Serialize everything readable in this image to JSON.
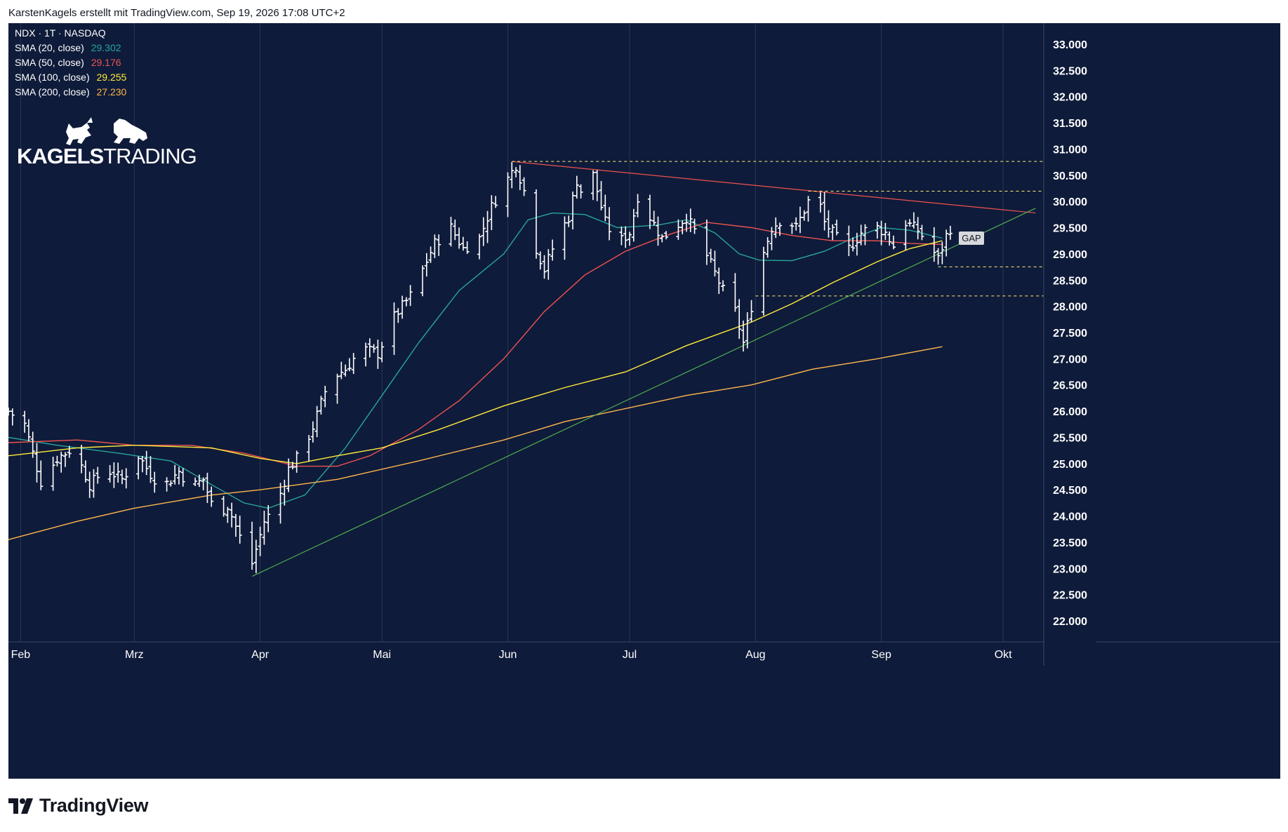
{
  "header": {
    "caption": "KarstenKagels erstellt mit TradingView.com, Sep 19, 2026 17:08 UTC+2"
  },
  "legend": {
    "symbol": "NDX · 1T · NASDAQ",
    "items": [
      {
        "label": "SMA (20, close)",
        "value": "29.302",
        "color": "#26a69a"
      },
      {
        "label": "SMA (50, close)",
        "value": "29.176",
        "color": "#ef5350"
      },
      {
        "label": "SMA (100, close)",
        "value": "29.255",
        "color": "#ffeb3b"
      },
      {
        "label": "SMA (200, close)",
        "value": "27.230",
        "color": "#ffb74d"
      }
    ]
  },
  "brand": {
    "name": "KAGELSTRADING",
    "name_bold": "KAGELS",
    "name_light": "TRADING"
  },
  "annotation": {
    "gap_label": "GAP"
  },
  "footer": {
    "logo_text": "TradingView"
  },
  "colors": {
    "background": "#0f1b3a",
    "grid": "#2a3656",
    "price_bars": "#ffffff",
    "level_line": "#fff176",
    "level_label_bg": "#fff176",
    "current_price_bg": "#ffffff",
    "downtrend_line": "#ef5350",
    "uptrend_line": "#4caf50"
  },
  "chart_data": {
    "type": "ohlc",
    "symbol": "NDX",
    "interval": "1T",
    "exchange": "NASDAQ",
    "x_axis": {
      "type": "date",
      "range": [
        "2026-01-29",
        "2026-10-11"
      ],
      "ticks": [
        {
          "date": "2026-02-01",
          "label": "Feb"
        },
        {
          "date": "2026-03-01",
          "label": "Mrz"
        },
        {
          "date": "2026-04-01",
          "label": "Apr"
        },
        {
          "date": "2026-05-01",
          "label": "Mai"
        },
        {
          "date": "2026-06-01",
          "label": "Jun"
        },
        {
          "date": "2026-07-01",
          "label": "Jul"
        },
        {
          "date": "2026-08-01",
          "label": "Aug"
        },
        {
          "date": "2026-09-01",
          "label": "Sep"
        },
        {
          "date": "2026-10-01",
          "label": "Okt"
        }
      ]
    },
    "y_axis": {
      "range": [
        21600,
        33400
      ],
      "ticks": [
        {
          "value": 22000,
          "label": "22.000"
        },
        {
          "value": 22500,
          "label": "22.500"
        },
        {
          "value": 23000,
          "label": "23.000"
        },
        {
          "value": 23500,
          "label": "23.500"
        },
        {
          "value": 24000,
          "label": "24.000"
        },
        {
          "value": 24500,
          "label": "24.500"
        },
        {
          "value": 25000,
          "label": "25.000"
        },
        {
          "value": 25500,
          "label": "25.500"
        },
        {
          "value": 26000,
          "label": "26.000"
        },
        {
          "value": 26500,
          "label": "26.500"
        },
        {
          "value": 27000,
          "label": "27.000"
        },
        {
          "value": 27500,
          "label": "27.500"
        },
        {
          "value": 28000,
          "label": "28.000"
        },
        {
          "value": 28500,
          "label": "28.500"
        },
        {
          "value": 29000,
          "label": "29.000"
        },
        {
          "value": 29500,
          "label": "29.500"
        },
        {
          "value": 30000,
          "label": "30.000"
        },
        {
          "value": 30500,
          "label": "30.500"
        },
        {
          "value": 31000,
          "label": "31.000"
        },
        {
          "value": 31500,
          "label": "31.500"
        },
        {
          "value": 32000,
          "label": "32.000"
        },
        {
          "value": 32500,
          "label": "32.500"
        },
        {
          "value": 33000,
          "label": "33.000"
        }
      ]
    },
    "current_price": {
      "value": 29644,
      "label": "29.644"
    },
    "horizontal_levels": [
      {
        "value": 30762,
        "label": "30.762",
        "from": "2026-06-02"
      },
      {
        "value": 30196,
        "label": "30.196",
        "from": "2026-08-14"
      },
      {
        "value": 28753,
        "label": "28.753",
        "from": "2026-09-15"
      },
      {
        "value": 28197,
        "label": "28.197",
        "from": "2026-08-01"
      }
    ],
    "trendlines": [
      {
        "name": "downtrend",
        "color": "#ef5350",
        "points": [
          [
            "2026-06-02",
            30762
          ],
          [
            "2026-10-09",
            29780
          ]
        ]
      },
      {
        "name": "uptrend",
        "color": "#4caf50",
        "points": [
          [
            "2026-03-30",
            22850
          ],
          [
            "2026-10-09",
            29870
          ]
        ]
      }
    ],
    "sma": [
      {
        "name": "SMA 20",
        "color": "#26a69a",
        "points": [
          [
            "2026-01-29",
            25500
          ],
          [
            "2026-02-10",
            25350
          ],
          [
            "2026-02-25",
            25200
          ],
          [
            "2026-03-10",
            25050
          ],
          [
            "2026-03-20",
            24600
          ],
          [
            "2026-03-28",
            24250
          ],
          [
            "2026-04-03",
            24150
          ],
          [
            "2026-04-12",
            24400
          ],
          [
            "2026-04-22",
            25300
          ],
          [
            "2026-05-01",
            26300
          ],
          [
            "2026-05-10",
            27300
          ],
          [
            "2026-05-20",
            28300
          ],
          [
            "2026-05-31",
            29000
          ],
          [
            "2026-06-06",
            29650
          ],
          [
            "2026-06-12",
            29780
          ],
          [
            "2026-06-20",
            29750
          ],
          [
            "2026-06-28",
            29500
          ],
          [
            "2026-07-08",
            29550
          ],
          [
            "2026-07-15",
            29650
          ],
          [
            "2026-07-22",
            29400
          ],
          [
            "2026-07-28",
            29000
          ],
          [
            "2026-08-02",
            28880
          ],
          [
            "2026-08-10",
            28870
          ],
          [
            "2026-08-18",
            29050
          ],
          [
            "2026-08-25",
            29300
          ],
          [
            "2026-09-01",
            29500
          ],
          [
            "2026-09-08",
            29450
          ],
          [
            "2026-09-16",
            29300
          ]
        ]
      },
      {
        "name": "SMA 50",
        "color": "#ef5350",
        "points": [
          [
            "2026-01-29",
            25400
          ],
          [
            "2026-02-15",
            25450
          ],
          [
            "2026-03-01",
            25350
          ],
          [
            "2026-03-15",
            25350
          ],
          [
            "2026-03-28",
            25200
          ],
          [
            "2026-04-10",
            24950
          ],
          [
            "2026-04-20",
            24950
          ],
          [
            "2026-04-28",
            25150
          ],
          [
            "2026-05-10",
            25650
          ],
          [
            "2026-05-20",
            26200
          ],
          [
            "2026-05-31",
            27000
          ],
          [
            "2026-06-10",
            27900
          ],
          [
            "2026-06-20",
            28600
          ],
          [
            "2026-06-30",
            29050
          ],
          [
            "2026-07-10",
            29350
          ],
          [
            "2026-07-20",
            29600
          ],
          [
            "2026-07-31",
            29500
          ],
          [
            "2026-08-10",
            29350
          ],
          [
            "2026-08-20",
            29250
          ],
          [
            "2026-08-31",
            29250
          ],
          [
            "2026-09-08",
            29200
          ],
          [
            "2026-09-16",
            29180
          ]
        ]
      },
      {
        "name": "SMA 100",
        "color": "#ffeb3b",
        "points": [
          [
            "2026-01-29",
            25150
          ],
          [
            "2026-02-15",
            25300
          ],
          [
            "2026-03-01",
            25350
          ],
          [
            "2026-03-20",
            25300
          ],
          [
            "2026-04-01",
            25100
          ],
          [
            "2026-04-10",
            25000
          ],
          [
            "2026-04-20",
            25150
          ],
          [
            "2026-05-01",
            25300
          ],
          [
            "2026-05-15",
            25650
          ],
          [
            "2026-05-31",
            26100
          ],
          [
            "2026-06-15",
            26450
          ],
          [
            "2026-06-30",
            26750
          ],
          [
            "2026-07-15",
            27250
          ],
          [
            "2026-07-31",
            27700
          ],
          [
            "2026-08-10",
            28050
          ],
          [
            "2026-08-20",
            28450
          ],
          [
            "2026-08-31",
            28850
          ],
          [
            "2026-09-08",
            29100
          ],
          [
            "2026-09-16",
            29250
          ]
        ]
      },
      {
        "name": "SMA 200",
        "color": "#ffb74d",
        "points": [
          [
            "2026-01-29",
            23550
          ],
          [
            "2026-02-15",
            23900
          ],
          [
            "2026-03-01",
            24150
          ],
          [
            "2026-03-20",
            24400
          ],
          [
            "2026-04-01",
            24500
          ],
          [
            "2026-04-20",
            24700
          ],
          [
            "2026-05-10",
            25050
          ],
          [
            "2026-05-31",
            25450
          ],
          [
            "2026-06-15",
            25800
          ],
          [
            "2026-06-30",
            26050
          ],
          [
            "2026-07-15",
            26300
          ],
          [
            "2026-07-31",
            26500
          ],
          [
            "2026-08-15",
            26800
          ],
          [
            "2026-08-31",
            27000
          ],
          [
            "2026-09-16",
            27230
          ]
        ]
      }
    ],
    "ohlc_anchors": [
      [
        "2026-01-29",
        26000
      ],
      [
        "2026-02-02",
        25750
      ],
      [
        "2026-02-06",
        24650
      ],
      [
        "2026-02-10",
        25100
      ],
      [
        "2026-02-14",
        25300
      ],
      [
        "2026-02-18",
        24600
      ],
      [
        "2026-02-22",
        24900
      ],
      [
        "2026-02-26",
        24700
      ],
      [
        "2026-03-02",
        25150
      ],
      [
        "2026-03-05",
        24800
      ],
      [
        "2026-03-08",
        24550
      ],
      [
        "2026-03-12",
        24850
      ],
      [
        "2026-03-15",
        24550
      ],
      [
        "2026-03-18",
        24700
      ],
      [
        "2026-03-21",
        24000
      ],
      [
        "2026-03-24",
        24200
      ],
      [
        "2026-03-27",
        23600
      ],
      [
        "2026-03-30",
        23100
      ],
      [
        "2026-04-02",
        23900
      ],
      [
        "2026-04-05",
        24200
      ],
      [
        "2026-04-08",
        24900
      ],
      [
        "2026-04-11",
        25200
      ],
      [
        "2026-04-14",
        25700
      ],
      [
        "2026-04-18",
        26600
      ],
      [
        "2026-04-22",
        26800
      ],
      [
        "2026-04-26",
        27200
      ],
      [
        "2026-04-30",
        27100
      ],
      [
        "2026-05-04",
        27800
      ],
      [
        "2026-05-08",
        28200
      ],
      [
        "2026-05-11",
        28700
      ],
      [
        "2026-05-14",
        29200
      ],
      [
        "2026-05-18",
        29500
      ],
      [
        "2026-05-21",
        29100
      ],
      [
        "2026-05-25",
        29300
      ],
      [
        "2026-05-28",
        29900
      ],
      [
        "2026-05-31",
        30300
      ],
      [
        "2026-06-03",
        30700
      ],
      [
        "2026-06-05",
        30200
      ],
      [
        "2026-06-07",
        29300
      ],
      [
        "2026-06-10",
        28700
      ],
      [
        "2026-06-13",
        29300
      ],
      [
        "2026-06-16",
        29700
      ],
      [
        "2026-06-18",
        30400
      ],
      [
        "2026-06-20",
        30000
      ],
      [
        "2026-06-22",
        30500
      ],
      [
        "2026-06-25",
        29600
      ],
      [
        "2026-06-28",
        29200
      ],
      [
        "2026-07-01",
        29400
      ],
      [
        "2026-07-03",
        30100
      ],
      [
        "2026-07-06",
        29700
      ],
      [
        "2026-07-09",
        29300
      ],
      [
        "2026-07-12",
        29500
      ],
      [
        "2026-07-15",
        29700
      ],
      [
        "2026-07-18",
        29300
      ],
      [
        "2026-07-21",
        28800
      ],
      [
        "2026-07-24",
        28300
      ],
      [
        "2026-07-27",
        27900
      ],
      [
        "2026-07-29",
        27300
      ],
      [
        "2026-07-31",
        28000
      ],
      [
        "2026-08-02",
        28800
      ],
      [
        "2026-08-05",
        29500
      ],
      [
        "2026-08-08",
        29700
      ],
      [
        "2026-08-11",
        29500
      ],
      [
        "2026-08-14",
        30000
      ],
      [
        "2026-08-16",
        30200
      ],
      [
        "2026-08-18",
        29600
      ],
      [
        "2026-08-21",
        29300
      ],
      [
        "2026-08-24",
        29100
      ],
      [
        "2026-08-27",
        29400
      ],
      [
        "2026-08-30",
        29550
      ],
      [
        "2026-09-02",
        29400
      ],
      [
        "2026-09-04",
        29150
      ],
      [
        "2026-09-07",
        29600
      ],
      [
        "2026-09-10",
        29450
      ],
      [
        "2026-09-13",
        29150
      ],
      [
        "2026-09-15",
        28900
      ],
      [
        "2026-09-17",
        29350
      ],
      [
        "2026-09-19",
        29640
      ]
    ]
  }
}
